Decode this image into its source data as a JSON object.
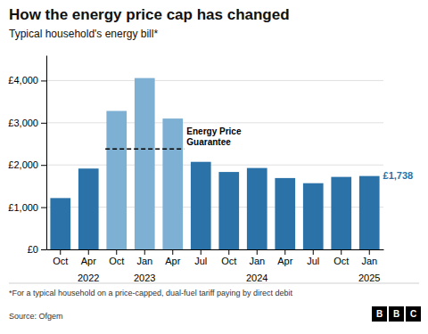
{
  "chart_data": {
    "type": "bar",
    "title": "How the energy price cap has changed",
    "subtitle": "Typical household's energy bill*",
    "footnote": "*For a typical household on a price-capped, dual-fuel tariff paying by direct debit",
    "source": "Source: Ofgem",
    "logo": [
      "B",
      "B",
      "C"
    ],
    "categories": [
      "Oct",
      "Apr",
      "Oct",
      "Jan",
      "Apr",
      "Jul",
      "Oct",
      "Jan",
      "Apr",
      "Jul",
      "Oct",
      "Jan"
    ],
    "year_labels": [
      null,
      "2022",
      null,
      "2023",
      null,
      null,
      null,
      "2024",
      null,
      null,
      null,
      "2025"
    ],
    "values": [
      1216,
      1915,
      3280,
      4059,
      3100,
      2074,
      1834,
      1928,
      1690,
      1568,
      1717,
      1738
    ],
    "value_labels": [
      null,
      null,
      null,
      null,
      null,
      null,
      null,
      null,
      null,
      null,
      null,
      "£1,738"
    ],
    "colors": [
      "#2a72a8",
      "#2a72a8",
      "#7eb0d4",
      "#7eb0d4",
      "#7eb0d4",
      "#2a72a8",
      "#2a72a8",
      "#2a72a8",
      "#2a72a8",
      "#2a72a8",
      "#2a72a8",
      "#2a72a8"
    ],
    "reference_line": {
      "value": 2380,
      "label_lines": [
        "Energy Price",
        "Guarantee"
      ],
      "start_index": 2,
      "end_index": 4,
      "color": "#000000",
      "line_style": "dashed"
    },
    "ylim": [
      0,
      4600
    ],
    "yticks": [
      {
        "value": 0,
        "label": "£0"
      },
      {
        "value": 1000,
        "label": "£1,000"
      },
      {
        "value": 2000,
        "label": "£2,000"
      },
      {
        "value": 3000,
        "label": "£3,000"
      },
      {
        "value": 4000,
        "label": "£4,000"
      }
    ],
    "grid": true
  }
}
